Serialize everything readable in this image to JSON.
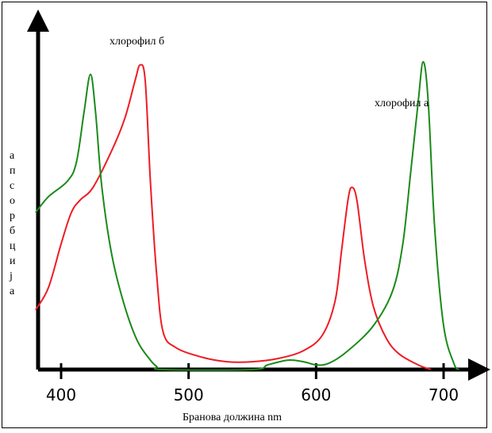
{
  "chart_data": {
    "type": "line",
    "xlabel": "Бранова должина  nm",
    "ylabel": "апсорбција",
    "xlim": [
      380,
      710
    ],
    "ylim": [
      0,
      100
    ],
    "x_ticks": [
      400,
      500,
      600,
      700
    ],
    "grid": false,
    "series": [
      {
        "name": "хлорофил б",
        "color": "#ee1c24",
        "points": [
          [
            380,
            19
          ],
          [
            390,
            26
          ],
          [
            400,
            40
          ],
          [
            408,
            50
          ],
          [
            415,
            54
          ],
          [
            425,
            58
          ],
          [
            440,
            70
          ],
          [
            450,
            80
          ],
          [
            458,
            92
          ],
          [
            462,
            97
          ],
          [
            466,
            92
          ],
          [
            470,
            60
          ],
          [
            475,
            30
          ],
          [
            480,
            12
          ],
          [
            490,
            7
          ],
          [
            510,
            4
          ],
          [
            530,
            2.5
          ],
          [
            550,
            2.5
          ],
          [
            570,
            3.5
          ],
          [
            590,
            6
          ],
          [
            605,
            11
          ],
          [
            615,
            22
          ],
          [
            620,
            38
          ],
          [
            625,
            54
          ],
          [
            628,
            58
          ],
          [
            632,
            54
          ],
          [
            638,
            35
          ],
          [
            645,
            20
          ],
          [
            655,
            10
          ],
          [
            665,
            5
          ],
          [
            680,
            1.5
          ],
          [
            690,
            0
          ]
        ]
      },
      {
        "name": "хлорофил а",
        "color": "#1a8a1a",
        "points": [
          [
            380,
            50
          ],
          [
            390,
            55
          ],
          [
            405,
            60
          ],
          [
            412,
            66
          ],
          [
            418,
            82
          ],
          [
            423,
            94
          ],
          [
            427,
            82
          ],
          [
            432,
            58
          ],
          [
            440,
            36
          ],
          [
            450,
            20
          ],
          [
            460,
            9
          ],
          [
            470,
            3
          ],
          [
            475,
            1
          ],
          [
            480,
            0
          ],
          [
            550,
            0
          ],
          [
            562,
            1.5
          ],
          [
            578,
            3
          ],
          [
            590,
            2.5
          ],
          [
            600,
            1.5
          ],
          [
            610,
            2
          ],
          [
            625,
            6
          ],
          [
            645,
            14
          ],
          [
            660,
            25
          ],
          [
            668,
            40
          ],
          [
            674,
            62
          ],
          [
            680,
            85
          ],
          [
            684,
            98
          ],
          [
            688,
            85
          ],
          [
            693,
            45
          ],
          [
            700,
            14
          ],
          [
            708,
            2
          ],
          [
            712,
            0
          ]
        ]
      }
    ]
  }
}
